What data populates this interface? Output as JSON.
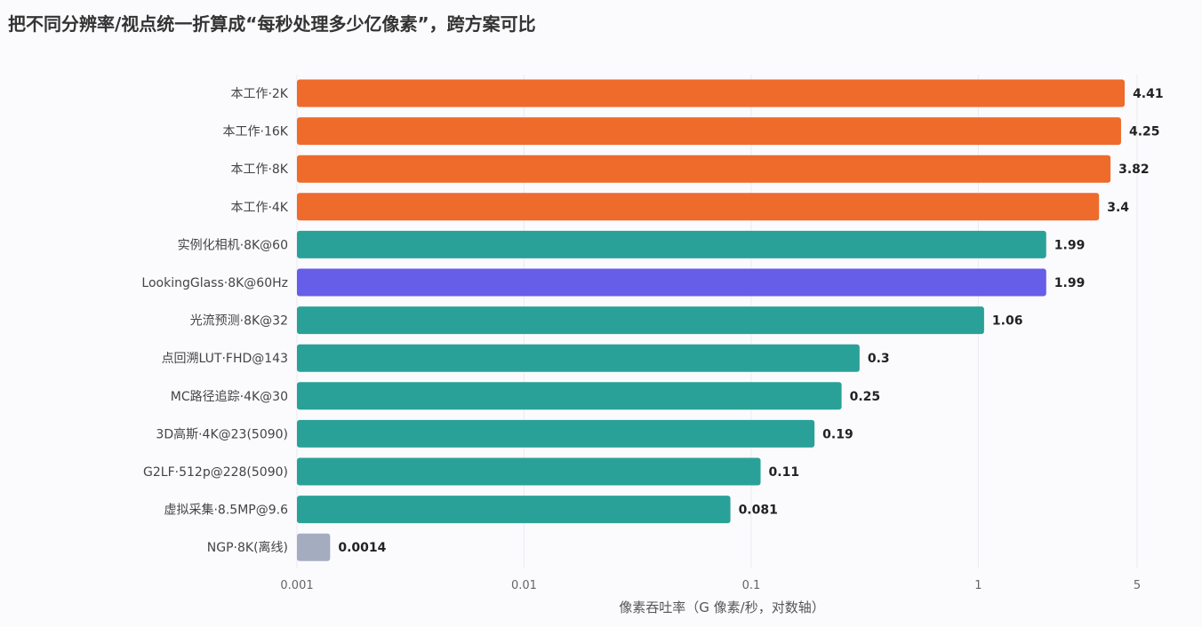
{
  "chart_data": {
    "type": "bar",
    "orientation": "horizontal",
    "title": "把不同分辨率/视点统一折算成“每秒处理多少亿像素”，跨方案可比",
    "xlabel": "像素吞吐率（G 像素/秒，对数轴）",
    "ylabel": "",
    "x_scale": "log",
    "xlim": [
      0.001,
      5
    ],
    "x_ticks": [
      0.001,
      0.01,
      0.1,
      1,
      5
    ],
    "x_tick_labels": [
      "0.001",
      "0.01",
      "0.1",
      "1",
      "5"
    ],
    "grid": "vertical",
    "categories": [
      "本工作·2K",
      "本工作·16K",
      "本工作·8K",
      "本工作·4K",
      "实例化相机·8K@60",
      "LookingGlass·8K@60Hz",
      "光流预测·8K@32",
      "点回溯LUT·FHD@143",
      "MC路径追踪·4K@30",
      "3D高斯·4K@23(5090)",
      "G2LF·512p@228(5090)",
      "虚拟采集·8.5MP@9.6",
      "NGP·8K(离线)"
    ],
    "values": [
      4.41,
      4.25,
      3.82,
      3.4,
      1.99,
      1.99,
      1.06,
      0.3,
      0.25,
      0.19,
      0.11,
      0.081,
      0.0014
    ],
    "value_labels": [
      "4.41",
      "4.25",
      "3.82",
      "3.4",
      "1.99",
      "1.99",
      "1.06",
      "0.3",
      "0.25",
      "0.19",
      "0.11",
      "0.081",
      "0.0014"
    ],
    "bar_colors": [
      "#ee6b2c",
      "#ee6b2c",
      "#ee6b2c",
      "#ee6b2c",
      "#2aa198",
      "#665ee8",
      "#2aa198",
      "#2aa198",
      "#2aa198",
      "#2aa198",
      "#2aa198",
      "#2aa198",
      "#a3adbf"
    ]
  }
}
